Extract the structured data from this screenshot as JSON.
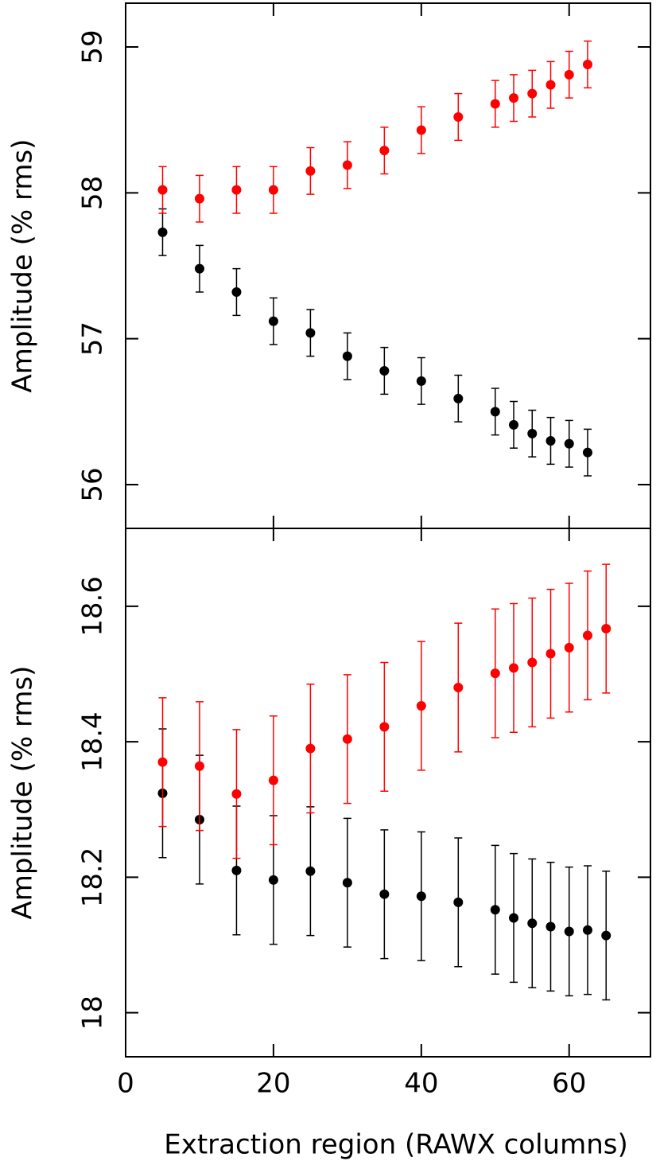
{
  "chart_data": [
    {
      "type": "scatter",
      "ylabel": "Amplitude (% rms)",
      "x": [
        5,
        10,
        15,
        20,
        25,
        30,
        35,
        40,
        45,
        50,
        52.5,
        55,
        57.5,
        60,
        62.5
      ],
      "series": [
        {
          "color": "#000000",
          "values": [
            57.73,
            57.48,
            57.32,
            57.12,
            57.04,
            56.88,
            56.78,
            56.71,
            56.59,
            56.5,
            56.41,
            56.35,
            56.3,
            56.28,
            56.22
          ],
          "errors": [
            0.16,
            0.16,
            0.16,
            0.16,
            0.16,
            0.16,
            0.16,
            0.16,
            0.16,
            0.16,
            0.16,
            0.16,
            0.16,
            0.16,
            0.16
          ]
        },
        {
          "color": "#ff0000",
          "values": [
            58.02,
            57.96,
            58.02,
            58.02,
            58.15,
            58.19,
            58.29,
            58.43,
            58.52,
            58.61,
            58.65,
            58.68,
            58.74,
            58.81,
            58.88
          ],
          "errors": [
            0.16,
            0.16,
            0.16,
            0.16,
            0.16,
            0.16,
            0.16,
            0.16,
            0.16,
            0.16,
            0.16,
            0.16,
            0.16,
            0.16,
            0.16
          ]
        }
      ],
      "xlim": [
        0,
        71
      ],
      "xticks": [
        0,
        20,
        40,
        60
      ],
      "ylim": [
        55.7,
        59.3
      ],
      "yticks": [
        56,
        57,
        58,
        59
      ]
    },
    {
      "type": "scatter",
      "ylabel": "Amplitude (% rms)",
      "xlabel": "Extraction region (RAWX columns)",
      "x": [
        5,
        10,
        15,
        20,
        25,
        30,
        35,
        40,
        45,
        50,
        52.5,
        55,
        57.5,
        60,
        62.5,
        65
      ],
      "series": [
        {
          "color": "#000000",
          "values": [
            18.324,
            18.285,
            18.21,
            18.196,
            18.209,
            18.192,
            18.175,
            18.172,
            18.163,
            18.152,
            18.14,
            18.132,
            18.127,
            18.12,
            18.122,
            18.114
          ],
          "errors": [
            0.095,
            0.095,
            0.095,
            0.095,
            0.095,
            0.095,
            0.095,
            0.095,
            0.095,
            0.095,
            0.095,
            0.095,
            0.095,
            0.095,
            0.095,
            0.095
          ]
        },
        {
          "color": "#ff0000",
          "values": [
            18.37,
            18.364,
            18.323,
            18.343,
            18.39,
            18.404,
            18.422,
            18.453,
            18.48,
            18.501,
            18.509,
            18.517,
            18.53,
            18.539,
            18.557,
            18.567
          ],
          "errors": [
            0.095,
            0.095,
            0.095,
            0.095,
            0.095,
            0.095,
            0.095,
            0.095,
            0.095,
            0.095,
            0.095,
            0.095,
            0.095,
            0.095,
            0.095,
            0.095
          ]
        }
      ],
      "xlim": [
        0,
        71
      ],
      "xticks": [
        0,
        20,
        40,
        60
      ],
      "ylim": [
        17.935,
        18.715
      ],
      "yticks": [
        18,
        {
          "value": 18.2,
          "label": "18.2"
        },
        {
          "value": 18.4,
          "label": "18.4"
        },
        {
          "value": 18.6,
          "label": "18.6"
        }
      ]
    }
  ]
}
